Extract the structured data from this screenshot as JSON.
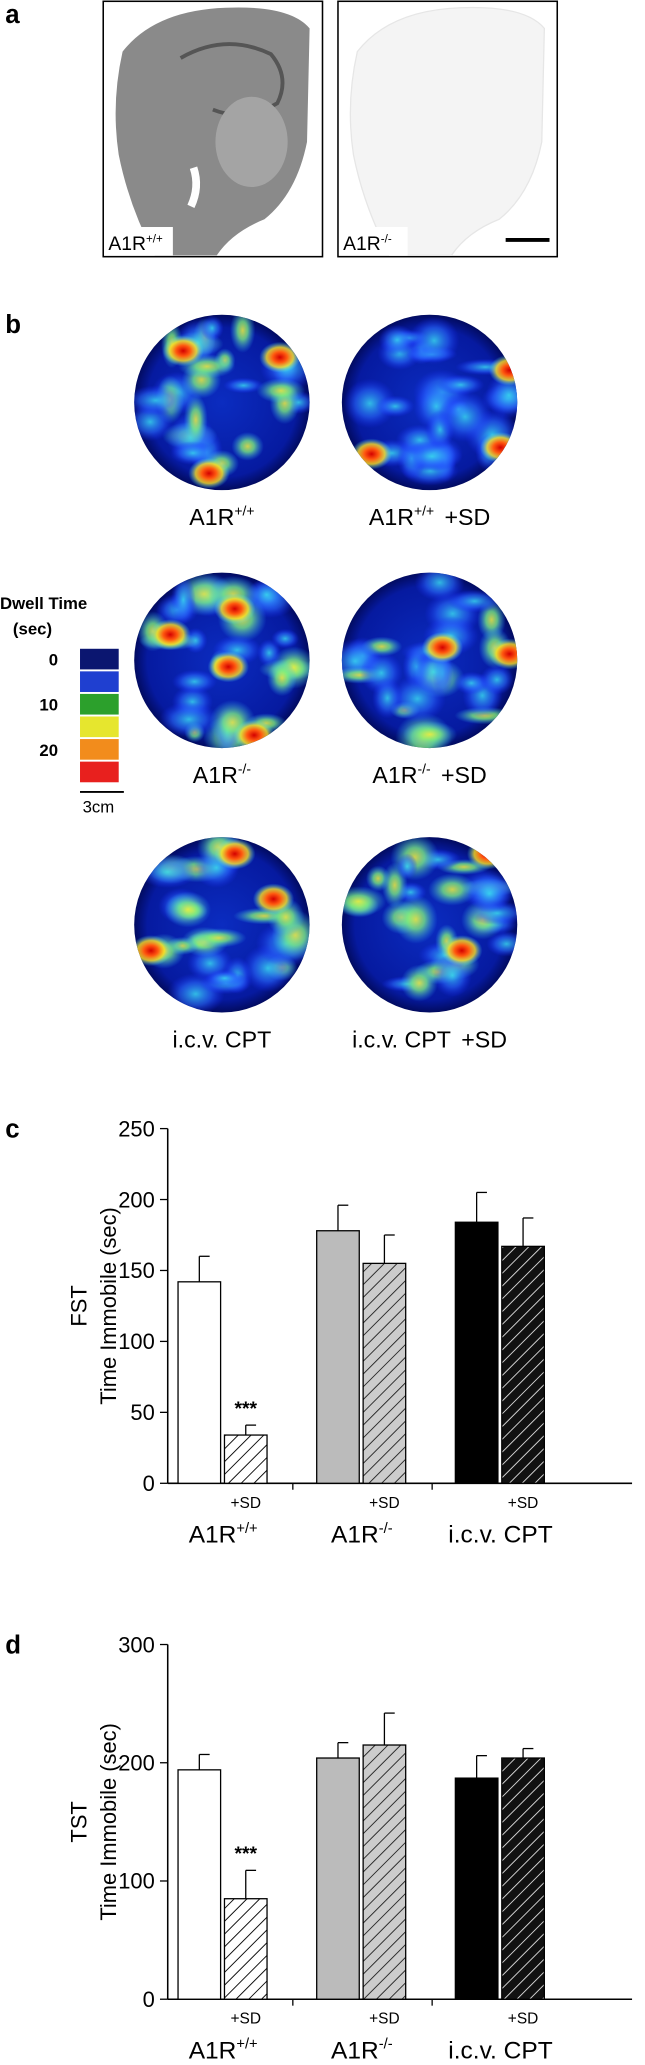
{
  "figure": {
    "panel_labels": [
      "a",
      "b",
      "c",
      "d"
    ],
    "panel_a": [
      {
        "text": "A1R",
        "sup": "+/+"
      },
      {
        "text": "A1R",
        "sup": "-/-"
      }
    ],
    "panel_b": {
      "maps": [
        {
          "text": "A1R",
          "sup": "+/+"
        },
        {
          "text": "A1R",
          "sup": "+/+",
          "suffix": "+SD"
        },
        {
          "text": "A1R",
          "sup": "-/-"
        },
        {
          "text": "A1R",
          "sup": "-/-",
          "suffix": "+SD"
        },
        {
          "text": "i.c.v. CPT"
        },
        {
          "text": "i.c.v. CPT",
          "suffix": "+SD"
        }
      ],
      "legend": {
        "title": "Dwell Time",
        "unit": "(sec)",
        "ticks": [
          0,
          10,
          20
        ],
        "colors": [
          "#0b1670",
          "#1f3fd0",
          "#2ca02c",
          "#e6e62e",
          "#f28c1c",
          "#e8201e"
        ],
        "scale_bar": "3cm"
      }
    }
  },
  "chart_data": [
    {
      "type": "bar",
      "ylabel": [
        "FST",
        "Time Immobile (sec)"
      ],
      "groups": [
        {
          "text": "A1R",
          "sup": "+/+"
        },
        {
          "text": "A1R",
          "sup": "-/-"
        },
        {
          "text": "i.c.v. CPT"
        }
      ],
      "categories": [
        null,
        "+SD",
        null,
        "+SD",
        null,
        "+SD"
      ],
      "values": [
        142,
        34,
        178,
        155,
        184,
        167
      ],
      "errors": [
        18,
        7,
        18,
        20,
        21,
        20
      ],
      "colors": [
        "#ffffff",
        "#ffffff",
        "#bbbbbb",
        "#bbbbbb",
        "#000000",
        "#000000"
      ],
      "hatched": [
        false,
        true,
        false,
        true,
        false,
        true
      ],
      "annotations": [
        {
          "bar": 1,
          "text": "***"
        }
      ],
      "ylim": [
        0,
        250
      ],
      "yticks": [
        0,
        50,
        100,
        150,
        200,
        250
      ]
    },
    {
      "type": "bar",
      "ylabel": [
        "TST",
        "Time Immobile (sec)"
      ],
      "groups": [
        {
          "text": "A1R",
          "sup": "+/+"
        },
        {
          "text": "A1R",
          "sup": "-/-"
        },
        {
          "text": "i.c.v. CPT"
        }
      ],
      "categories": [
        null,
        "+SD",
        null,
        "+SD",
        null,
        "+SD"
      ],
      "values": [
        194,
        85,
        204,
        215,
        187,
        204
      ],
      "errors": [
        13,
        24,
        13,
        27,
        19,
        8
      ],
      "colors": [
        "#ffffff",
        "#ffffff",
        "#bbbbbb",
        "#bbbbbb",
        "#000000",
        "#000000"
      ],
      "hatched": [
        false,
        true,
        false,
        true,
        false,
        true
      ],
      "annotations": [
        {
          "bar": 1,
          "text": "***"
        }
      ],
      "ylim": [
        0,
        300
      ],
      "yticks": [
        0,
        100,
        200,
        300
      ]
    }
  ]
}
